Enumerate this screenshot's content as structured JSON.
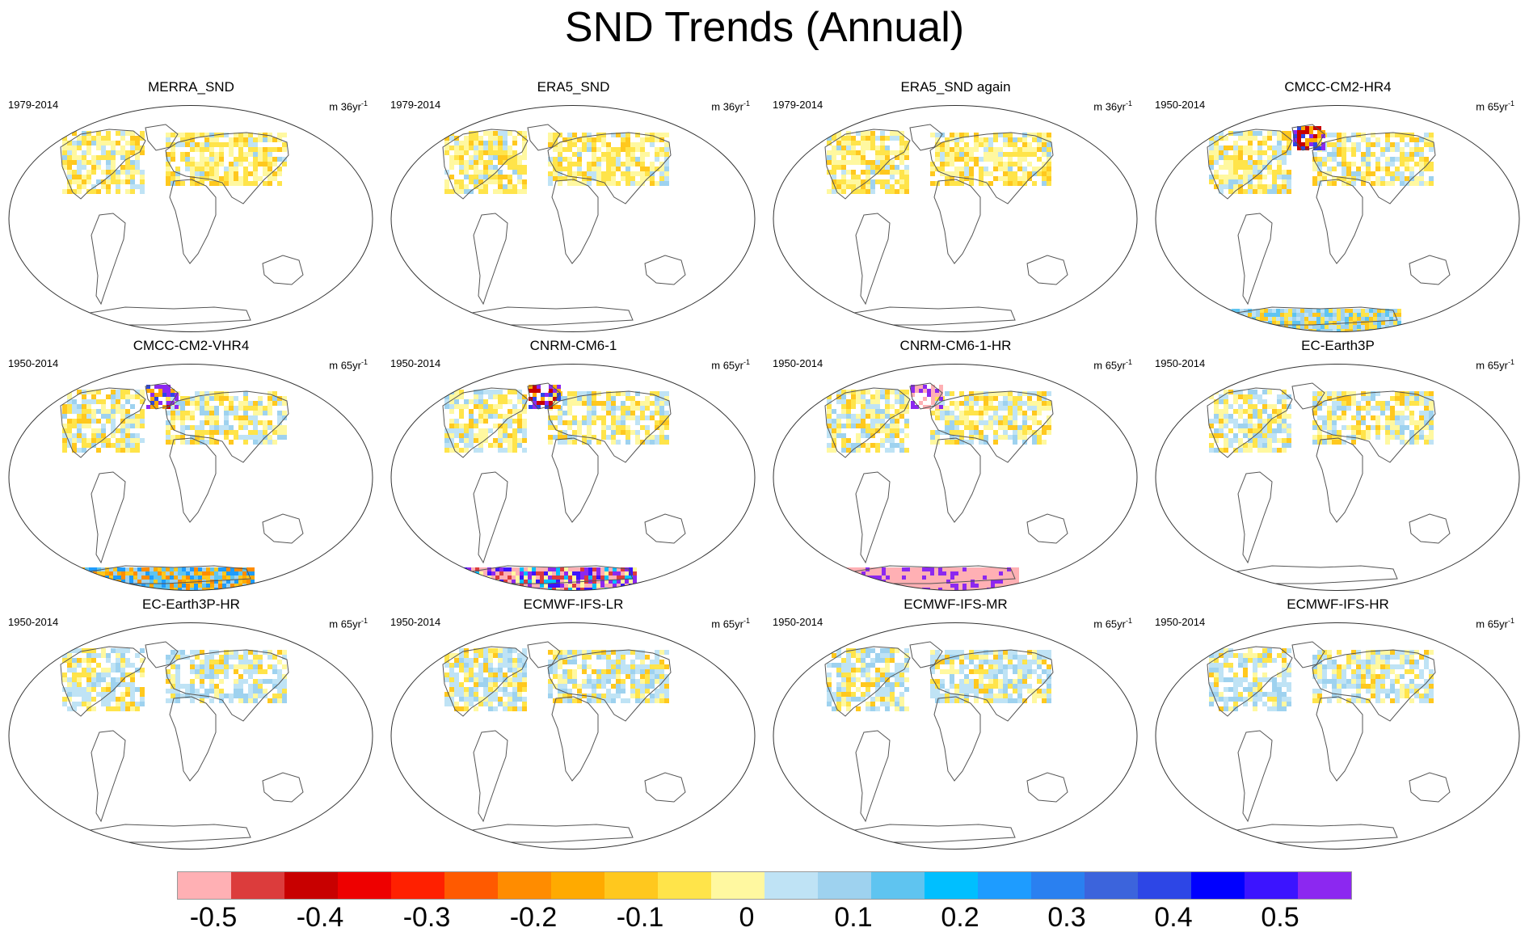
{
  "title": "SND Trends (Annual)",
  "units_prefix": "m",
  "units_suffix": "yr",
  "units_exponent": "-1",
  "panels": [
    {
      "name": "MERRA_SND",
      "period": "1979-2014",
      "years": "36",
      "antarctic": "none"
    },
    {
      "name": "ERA5_SND",
      "period": "1979-2014",
      "years": "36",
      "antarctic": "none"
    },
    {
      "name": "ERA5_SND again",
      "period": "1979-2014",
      "years": "36",
      "antarctic": "none"
    },
    {
      "name": "CMCC-CM2-HR4",
      "period": "1950-2014",
      "years": "65",
      "antarctic": "mixed_light"
    },
    {
      "name": "CMCC-CM2-VHR4",
      "period": "1950-2014",
      "years": "65",
      "antarctic": "mixed_orange"
    },
    {
      "name": "CNRM-CM6-1",
      "period": "1950-2014",
      "years": "65",
      "antarctic": "pink_purple"
    },
    {
      "name": "CNRM-CM6-1-HR",
      "period": "1950-2014",
      "years": "65",
      "antarctic": "pink"
    },
    {
      "name": "EC-Earth3P",
      "period": "1950-2014",
      "years": "65",
      "antarctic": "none"
    },
    {
      "name": "EC-Earth3P-HR",
      "period": "1950-2014",
      "years": "65",
      "antarctic": "none"
    },
    {
      "name": "ECMWF-IFS-LR",
      "period": "1950-2014",
      "years": "65",
      "antarctic": "none"
    },
    {
      "name": "ECMWF-IFS-MR",
      "period": "1950-2014",
      "years": "65",
      "antarctic": "none"
    },
    {
      "name": "ECMWF-IFS-HR",
      "period": "1950-2014",
      "years": "65",
      "antarctic": "none"
    }
  ],
  "colorbar": {
    "colors": [
      "#ffb0b4",
      "#dc3c3c",
      "#c80000",
      "#ee0000",
      "#ff2000",
      "#ff5a00",
      "#ff8c00",
      "#ffaa00",
      "#ffc81e",
      "#ffe44a",
      "#fff8a0",
      "#bfe3f5",
      "#9ed2ef",
      "#5fc4f0",
      "#00bfff",
      "#1e9cff",
      "#2a80f0",
      "#3c64dc",
      "#2d46e6",
      "#0000ff",
      "#3c14ff",
      "#8c28f0"
    ],
    "labels": [
      "-0.5",
      "-0.4",
      "-0.3",
      "-0.2",
      "-0.1",
      "0",
      "0.1",
      "0.2",
      "0.3",
      "0.4",
      "0.5"
    ]
  }
}
